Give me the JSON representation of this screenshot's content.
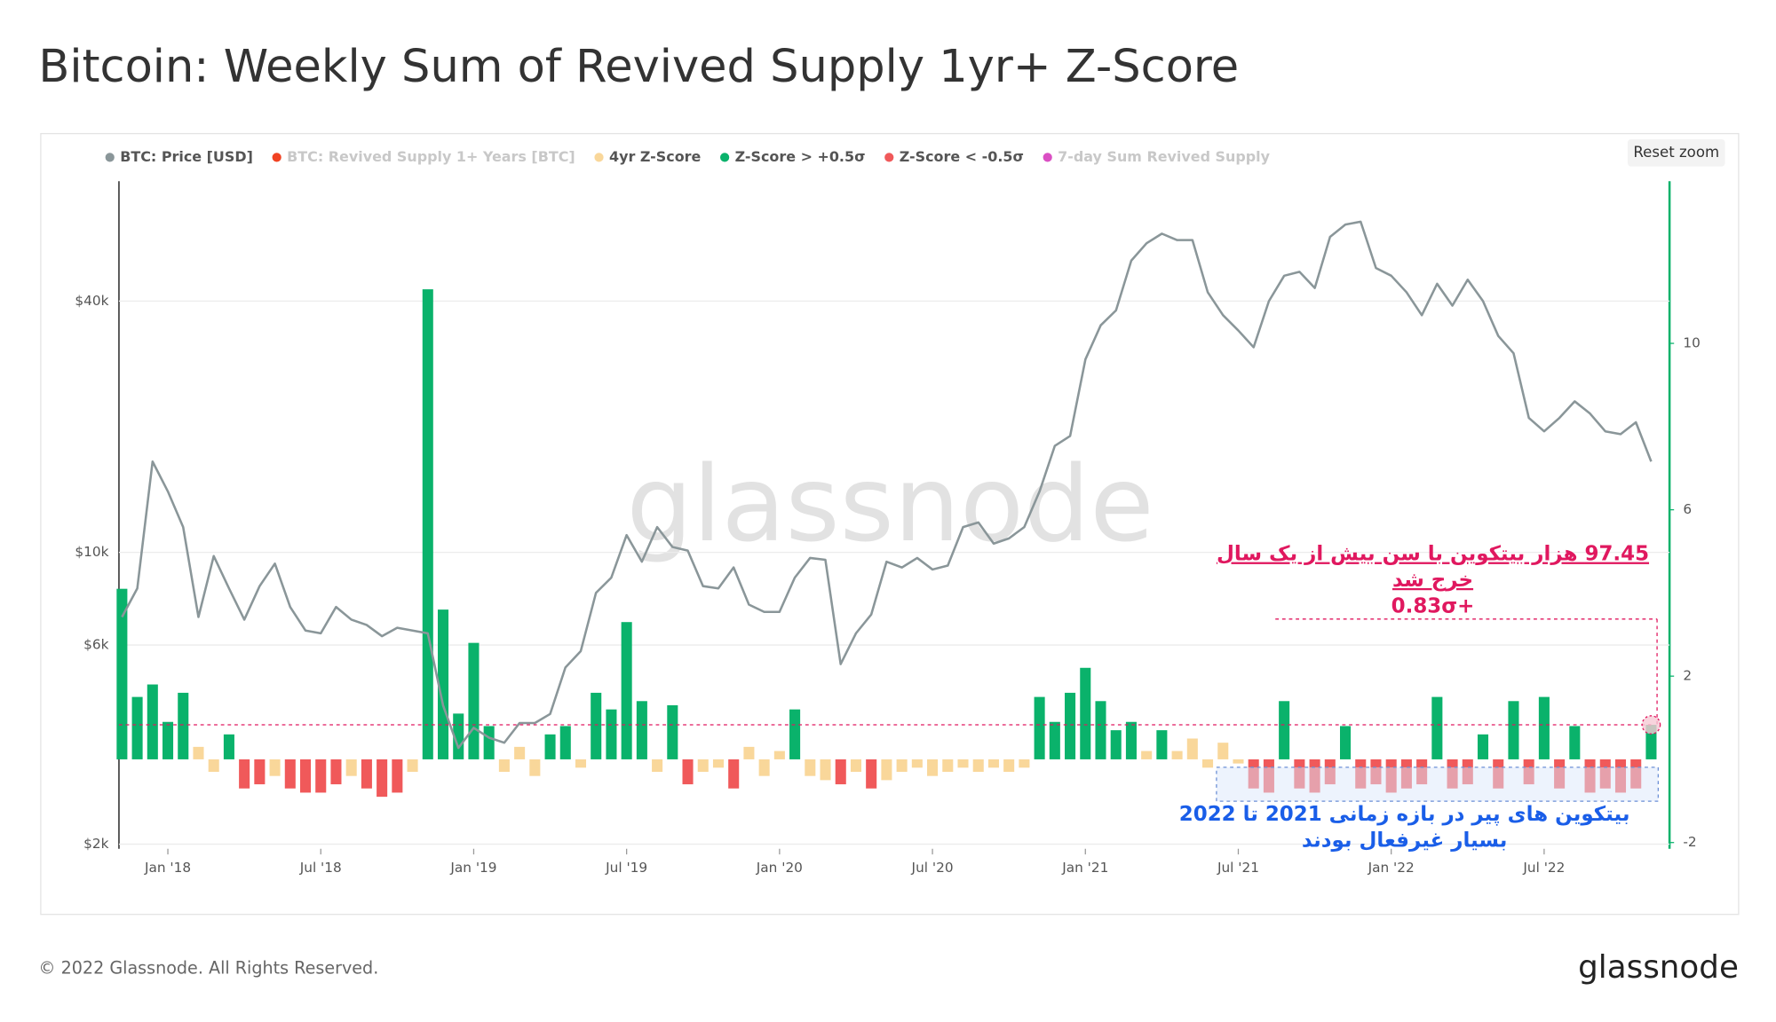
{
  "chart_data": {
    "type": "line",
    "title": "Bitcoin: Weekly Sum of Revived Supply 1yr+ Z-Score",
    "x": [
      2017.85,
      2017.9,
      2017.95,
      2018.0,
      2018.05,
      2018.1,
      2018.15,
      2018.2,
      2018.25,
      2018.3,
      2018.35,
      2018.4,
      2018.45,
      2018.5,
      2018.55,
      2018.6,
      2018.65,
      2018.7,
      2018.75,
      2018.8,
      2018.85,
      2018.9,
      2018.95,
      2019.0,
      2019.05,
      2019.1,
      2019.15,
      2019.2,
      2019.25,
      2019.3,
      2019.35,
      2019.4,
      2019.45,
      2019.5,
      2019.55,
      2019.6,
      2019.65,
      2019.7,
      2019.75,
      2019.8,
      2019.85,
      2019.9,
      2019.95,
      2020.0,
      2020.05,
      2020.1,
      2020.15,
      2020.2,
      2020.25,
      2020.3,
      2020.35,
      2020.4,
      2020.45,
      2020.5,
      2020.55,
      2020.6,
      2020.65,
      2020.7,
      2020.75,
      2020.8,
      2020.85,
      2020.9,
      2020.95,
      2021.0,
      2021.05,
      2021.1,
      2021.15,
      2021.2,
      2021.25,
      2021.3,
      2021.35,
      2021.4,
      2021.45,
      2021.5,
      2021.55,
      2021.6,
      2021.65,
      2021.7,
      2021.75,
      2021.8,
      2021.85,
      2021.9,
      2021.95,
      2022.0,
      2022.05,
      2022.1,
      2022.15,
      2022.2,
      2022.25,
      2022.3,
      2022.35,
      2022.4,
      2022.45,
      2022.5,
      2022.55,
      2022.6,
      2022.65,
      2022.7,
      2022.75,
      2022.8,
      2022.85
    ],
    "series": [
      {
        "name": "BTC: Price [USD]",
        "color": "#8a9699",
        "values": [
          7000,
          8200,
          16500,
          14000,
          11500,
          7000,
          9800,
          8200,
          6900,
          8300,
          9400,
          7400,
          6500,
          6400,
          7400,
          6900,
          6700,
          6300,
          6600,
          6500,
          6400,
          4300,
          3400,
          3800,
          3600,
          3500,
          3900,
          3900,
          4100,
          5300,
          5800,
          8000,
          8700,
          11000,
          9500,
          11500,
          10300,
          10100,
          8300,
          8200,
          9200,
          7500,
          7200,
          7200,
          8700,
          9700,
          9600,
          5400,
          6400,
          7100,
          9500,
          9200,
          9700,
          9100,
          9300,
          11500,
          11800,
          10500,
          10800,
          11500,
          14000,
          18000,
          19000,
          29000,
          35000,
          38000,
          50000,
          55000,
          58000,
          56000,
          56000,
          42000,
          37000,
          34000,
          31000,
          40000,
          46000,
          47000,
          43000,
          57000,
          61000,
          62000,
          48000,
          46000,
          42000,
          37000,
          44000,
          39000,
          45000,
          40000,
          33000,
          30000,
          21000,
          19500,
          21000,
          23000,
          21500,
          19500,
          19200,
          20500,
          16500
        ]
      },
      {
        "name": "4yr Z-Score",
        "color": "#f9d79a",
        "axis": "y2",
        "type": "bar",
        "values": [
          4.1,
          1.5,
          1.8,
          0.9,
          1.6,
          0.3,
          -0.3,
          0.6,
          -0.7,
          -0.6,
          -0.4,
          -0.7,
          -0.8,
          -0.8,
          -0.6,
          -0.4,
          -0.7,
          -0.9,
          -0.8,
          -0.3,
          11.3,
          3.6,
          1.1,
          2.8,
          0.8,
          -0.3,
          0.3,
          -0.4,
          0.6,
          0.8,
          -0.2,
          1.6,
          1.2,
          3.3,
          1.4,
          -0.3,
          1.3,
          -0.6,
          -0.3,
          -0.2,
          -0.7,
          0.3,
          -0.4,
          0.2,
          1.2,
          -0.4,
          -0.5,
          -0.6,
          -0.3,
          -0.7,
          -0.5,
          -0.3,
          -0.2,
          -0.4,
          -0.3,
          -0.2,
          -0.3,
          -0.2,
          -0.3,
          -0.2,
          1.5,
          0.9,
          1.6,
          2.2,
          1.4,
          0.7,
          0.9,
          0.2,
          0.7,
          0.2,
          0.5,
          -0.2,
          0.4,
          -0.1,
          -0.7,
          -0.8,
          1.4,
          -0.7,
          -0.8,
          -0.6,
          0.8,
          -0.7,
          -0.6,
          -0.8,
          -0.7,
          -0.6,
          1.5,
          -0.7,
          -0.6,
          0.6,
          -0.7,
          1.4,
          -0.6,
          1.5,
          -0.7,
          0.8,
          -0.8,
          -0.7,
          -0.8,
          -0.7,
          0.83
        ]
      }
    ],
    "zones": [
      {
        "name": "Z-Score > +0.5σ",
        "color": "#0ab26b",
        "above": 0.5
      },
      {
        "name": "Z-Score < -0.5σ",
        "color": "#f0595a",
        "below": -0.5
      }
    ],
    "hidden_series": [
      {
        "name": "BTC: Revived Supply 1+ Years [BTC]",
        "color": "#f02d0a"
      },
      {
        "name": "7-day Sum Revived Supply",
        "color": "#d63cbd"
      }
    ],
    "xlim": [
      2017.84,
      2022.91
    ],
    "xticks": [
      {
        "value": 2018.0,
        "label": "Jan '18"
      },
      {
        "value": 2018.5,
        "label": "Jul '18"
      },
      {
        "value": 2019.0,
        "label": "Jan '19"
      },
      {
        "value": 2019.5,
        "label": "Jul '19"
      },
      {
        "value": 2020.0,
        "label": "Jan '20"
      },
      {
        "value": 2020.5,
        "label": "Jul '20"
      },
      {
        "value": 2021.0,
        "label": "Jan '21"
      },
      {
        "value": 2021.5,
        "label": "Jul '21"
      },
      {
        "value": 2022.0,
        "label": "Jan '22"
      },
      {
        "value": 2022.5,
        "label": "Jul '22"
      }
    ],
    "ylim": [
      1950,
      77500
    ],
    "log_y": true,
    "yticks": [
      {
        "value": 2000,
        "label": "$2k"
      },
      {
        "value": 6000,
        "label": "$6k"
      },
      {
        "value": 10000,
        "label": "$10k"
      },
      {
        "value": 40000,
        "label": "$40k"
      }
    ],
    "y2lim": [
      -2.15,
      13.9
    ],
    "y2ticks": [
      -2,
      2,
      6,
      10
    ],
    "grid": true,
    "annotations": [
      {
        "lines": [
          "97.45 هزار بیتکوین با سن بیش از یک سال",
          "خرج شد",
          "+0.83σ"
        ],
        "color": "#e0185f"
      },
      {
        "lines": [
          "بیتکوین های پیر در بازه زمانی 2021 تا 2022",
          "بسیار غیرفعال بودند"
        ],
        "color": "#1a5ee8"
      }
    ]
  },
  "reset_zoom": "Reset zoom",
  "watermark": "glassnode",
  "footer": {
    "copyright": "© 2022 Glassnode. All Rights Reserved.",
    "brand": "glassnode"
  }
}
